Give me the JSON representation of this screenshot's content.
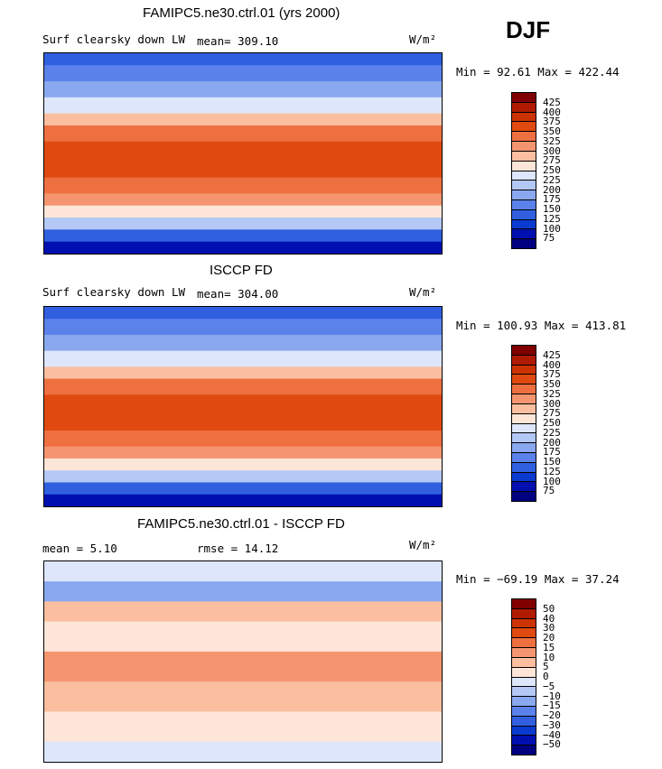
{
  "season": "DJF",
  "units": "W/m²",
  "panels": [
    {
      "title": "FAMIPC5.ne30.ctrl.01 (yrs 2000)",
      "left_label": "Surf clearsky down LW",
      "mid_label": "mean= 309.10",
      "minmax": "Min =  92.61 Max = 422.44",
      "ticks": [
        "425",
        "400",
        "375",
        "350",
        "325",
        "300",
        "275",
        "250",
        "225",
        "200",
        "175",
        "150",
        "125",
        "100",
        "75"
      ]
    },
    {
      "title": "ISCCP FD",
      "left_label": "Surf clearsky down LW",
      "mid_label": "mean= 304.00",
      "minmax": "Min = 100.93 Max = 413.81",
      "ticks": [
        "425",
        "400",
        "375",
        "350",
        "325",
        "300",
        "275",
        "250",
        "225",
        "200",
        "175",
        "150",
        "125",
        "100",
        "75"
      ]
    },
    {
      "title": "FAMIPC5.ne30.ctrl.01 - ISCCP FD",
      "left_label": "mean =   5.10",
      "mid_label": "rmse =  14.12",
      "minmax": "Min = −69.19 Max =  37.24",
      "ticks": [
        "50",
        "40",
        "30",
        "20",
        "15",
        "10",
        "5",
        "0",
        "−5",
        "−10",
        "−15",
        "−20",
        "−30",
        "−40",
        "−50"
      ]
    }
  ],
  "colors": {
    "scale": [
      "#800000",
      "#b01a00",
      "#cc3300",
      "#e04a10",
      "#ee7040",
      "#f59570",
      "#fbbfa0",
      "#fde6d8",
      "#dde6fb",
      "#b3c8f5",
      "#8aa8f0",
      "#5b82ea",
      "#3060e0",
      "#0a3ad0",
      "#0010b0",
      "#000080"
    ]
  }
}
